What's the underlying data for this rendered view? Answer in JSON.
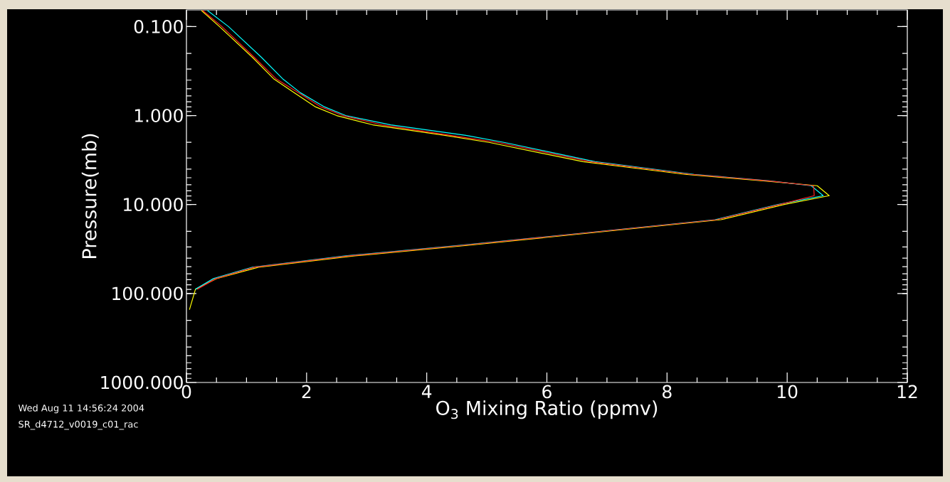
{
  "chart_data": {
    "type": "line",
    "xlabel": "O$_{3}$ Mixing Ratio (ppmv)",
    "ylabel": "Pressure(mb)",
    "log": "y",
    "xlim": [
      0,
      12
    ],
    "xticks": [
      0,
      2,
      4,
      6,
      8,
      10,
      12
    ],
    "ylim": [
      1000,
      0.065
    ],
    "yticks": [
      {
        "value": 0.1,
        "label": "0.100"
      },
      {
        "value": 1,
        "label": "1.000"
      },
      {
        "value": 10,
        "label": "10.000"
      },
      {
        "value": 100,
        "label": "100.000"
      },
      {
        "value": 1000,
        "label": "1000.000"
      }
    ],
    "annotations": [
      "Wed Aug 11 14:56:24 2004",
      "SR_d4712_v0019_c01_rac"
    ],
    "series": [
      {
        "color": "#ffff00",
        "x": [
          0.25,
          0.55,
          1.1,
          1.45,
          1.8,
          2.15,
          2.5,
          3.1,
          4.3,
          5.05,
          6.6,
          8.3,
          9.6,
          10.5,
          10.7,
          9.95,
          8.9,
          6.8,
          4.7,
          2.8,
          1.2,
          0.5,
          0.15,
          0.05
        ],
        "values": [
          0.066,
          0.1,
          0.222,
          0.385,
          0.556,
          0.8,
          1,
          1.27,
          1.67,
          2.01,
          3.3,
          4.58,
          5.41,
          6.15,
          7.95,
          10,
          14.8,
          20.6,
          28.7,
          37.8,
          50.7,
          68,
          89.6,
          152
        ]
      },
      {
        "color": "#00ffff",
        "x": [
          0.35,
          0.7,
          1.25,
          1.6,
          1.9,
          2.3,
          2.65,
          3.4,
          4.65,
          5.3,
          6.8,
          8.45,
          9.7,
          10.4,
          10.6,
          9.85,
          8.8,
          6.7,
          4.55,
          2.65,
          1.1,
          0.45,
          0.15
        ],
        "values": [
          0.066,
          0.1,
          0.222,
          0.385,
          0.556,
          0.8,
          1,
          1.27,
          1.67,
          2.01,
          3.3,
          4.58,
          5.41,
          6.15,
          7.95,
          10,
          14.8,
          20.6,
          28.7,
          37.8,
          50.7,
          68,
          89.6
        ]
      },
      {
        "color": "#ff2020",
        "x": [
          0.27,
          0.59,
          1.13,
          1.49,
          1.87,
          2.24,
          2.6,
          3.25,
          4.4,
          5.19,
          6.72,
          8.4,
          9.68,
          10.44,
          10.45,
          9.88,
          8.83,
          6.72,
          4.6,
          2.71,
          1.13,
          0.49,
          0.18
        ],
        "values": [
          0.066,
          0.1,
          0.222,
          0.385,
          0.556,
          0.8,
          1,
          1.27,
          1.67,
          2.01,
          3.3,
          4.58,
          5.41,
          6.15,
          7.95,
          10,
          14.8,
          20.6,
          28.7,
          37.8,
          50.7,
          68,
          89.6
        ]
      }
    ]
  }
}
